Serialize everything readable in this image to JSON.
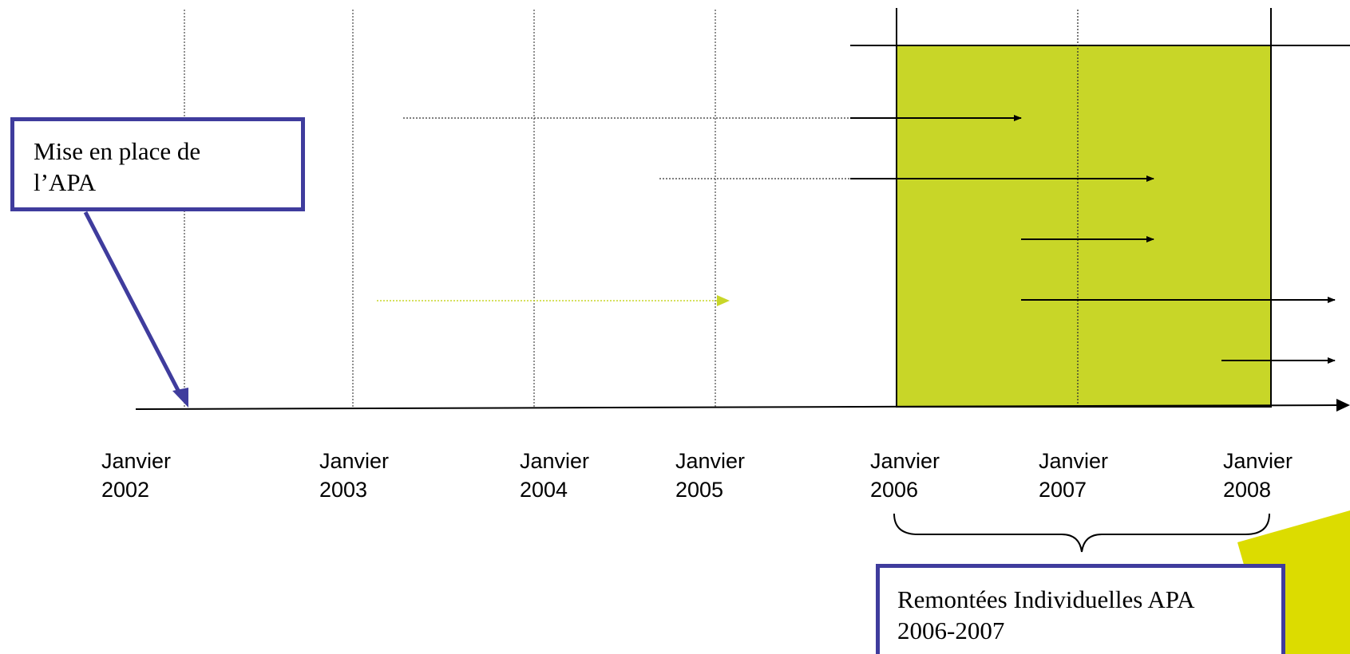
{
  "colors": {
    "period_fill": "#c8d628",
    "callout_border": "#3f3c9d",
    "light_arrow": "#c8d628",
    "corner_accent": "#dcdc00"
  },
  "years": [
    {
      "month": "Janvier",
      "year": "2002"
    },
    {
      "month": "Janvier",
      "year": "2003"
    },
    {
      "month": "Janvier",
      "year": "2004"
    },
    {
      "month": "Janvier",
      "year": "2005"
    },
    {
      "month": "Janvier",
      "year": "2006"
    },
    {
      "month": "Janvier",
      "year": "2007"
    },
    {
      "month": "Janvier",
      "year": "2008"
    }
  ],
  "callouts": {
    "apa": {
      "line1": "Mise en place de",
      "line2": "l’APA"
    },
    "remontees": {
      "line1": "Remontées Individuelles APA",
      "line2": "2006-2007"
    }
  }
}
